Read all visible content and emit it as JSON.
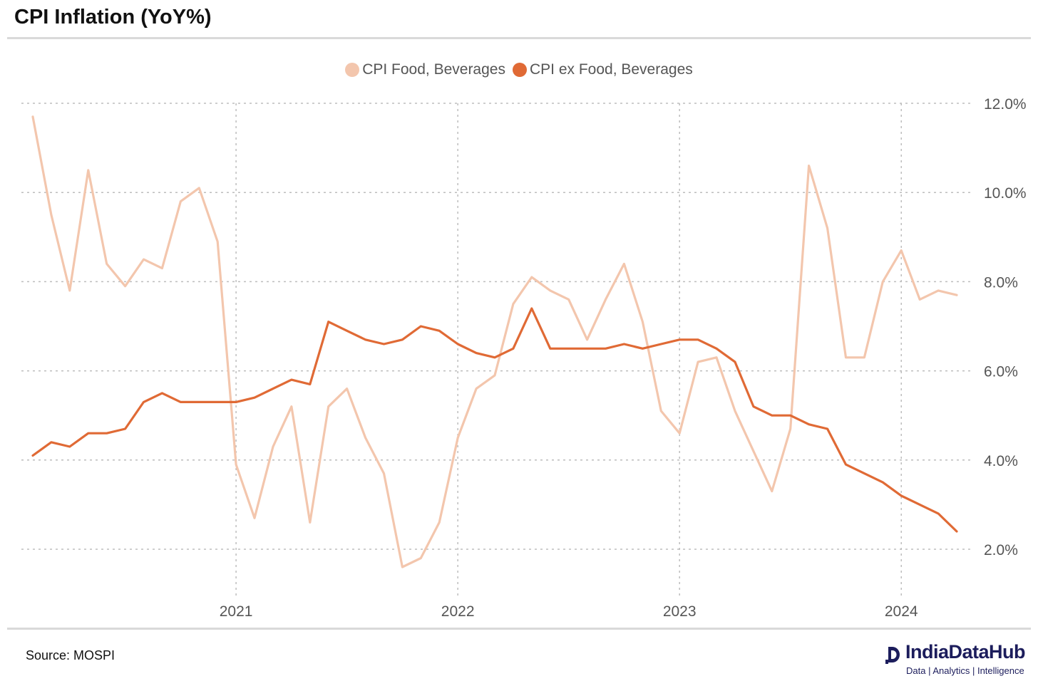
{
  "title": "CPI Inflation (YoY%)",
  "source": "Source: MOSPI",
  "brand": {
    "name": "IndiaDataHub",
    "tagline": "Data | Analytics | Intelligence"
  },
  "colors": {
    "food": "#f3c6ad",
    "ex_food": "#e06a35",
    "grid": "#bdbdbd",
    "axis_text": "#555555"
  },
  "chart_data": {
    "type": "line",
    "title": "CPI Inflation (YoY%)",
    "x_start": "2020-02",
    "x_end": "2024-04",
    "x_ticks": [
      "2021",
      "2022",
      "2023",
      "2024"
    ],
    "y_ticks": [
      "2.0%",
      "4.0%",
      "6.0%",
      "8.0%",
      "10.0%",
      "12.0%"
    ],
    "ylim": [
      2.0,
      12.0
    ],
    "y_axis_side": "right",
    "grid": true,
    "legend_position": "top-center",
    "series": [
      {
        "name": "CPI Food, Beverages",
        "color": "#f3c6ad",
        "x": [
          "2020-02",
          "2020-03",
          "2020-04",
          "2020-05",
          "2020-06",
          "2020-07",
          "2020-08",
          "2020-09",
          "2020-10",
          "2020-11",
          "2020-12",
          "2021-01",
          "2021-02",
          "2021-03",
          "2021-04",
          "2021-05",
          "2021-06",
          "2021-07",
          "2021-08",
          "2021-09",
          "2021-10",
          "2021-11",
          "2021-12",
          "2022-01",
          "2022-02",
          "2022-03",
          "2022-04",
          "2022-05",
          "2022-06",
          "2022-07",
          "2022-08",
          "2022-09",
          "2022-10",
          "2022-11",
          "2022-12",
          "2023-01",
          "2023-02",
          "2023-03",
          "2023-04",
          "2023-05",
          "2023-06",
          "2023-07",
          "2023-08",
          "2023-09",
          "2023-10",
          "2023-11",
          "2023-12",
          "2024-01",
          "2024-02",
          "2024-03",
          "2024-04"
        ],
        "values": [
          11.7,
          9.5,
          7.8,
          10.5,
          8.4,
          7.9,
          8.5,
          8.3,
          9.8,
          10.1,
          8.9,
          3.9,
          2.7,
          4.3,
          5.2,
          2.6,
          5.2,
          5.6,
          4.5,
          3.7,
          1.6,
          1.8,
          2.6,
          4.5,
          5.6,
          5.9,
          7.5,
          8.1,
          7.8,
          7.6,
          6.7,
          7.6,
          8.4,
          7.1,
          5.1,
          4.6,
          6.2,
          6.3,
          5.1,
          4.2,
          3.3,
          4.7,
          10.6,
          9.2,
          6.3,
          6.3,
          8.0,
          8.7,
          7.6,
          7.8,
          7.7
        ]
      },
      {
        "name": "CPI ex Food, Beverages",
        "color": "#e06a35",
        "x": [
          "2020-02",
          "2020-03",
          "2020-04",
          "2020-05",
          "2020-06",
          "2020-07",
          "2020-08",
          "2020-09",
          "2020-10",
          "2020-11",
          "2020-12",
          "2021-01",
          "2021-02",
          "2021-03",
          "2021-04",
          "2021-05",
          "2021-06",
          "2021-07",
          "2021-08",
          "2021-09",
          "2021-10",
          "2021-11",
          "2021-12",
          "2022-01",
          "2022-02",
          "2022-03",
          "2022-04",
          "2022-05",
          "2022-06",
          "2022-07",
          "2022-08",
          "2022-09",
          "2022-10",
          "2022-11",
          "2022-12",
          "2023-01",
          "2023-02",
          "2023-03",
          "2023-04",
          "2023-05",
          "2023-06",
          "2023-07",
          "2023-08",
          "2023-09",
          "2023-10",
          "2023-11",
          "2023-12",
          "2024-01",
          "2024-02",
          "2024-03",
          "2024-04"
        ],
        "values": [
          4.1,
          4.4,
          4.3,
          4.6,
          4.6,
          4.7,
          5.3,
          5.5,
          5.3,
          5.3,
          5.3,
          5.3,
          5.4,
          5.6,
          5.8,
          5.7,
          7.1,
          6.9,
          6.7,
          6.6,
          6.7,
          7.0,
          6.9,
          6.6,
          6.4,
          6.3,
          6.5,
          7.4,
          6.5,
          6.5,
          6.5,
          6.5,
          6.6,
          6.5,
          6.6,
          6.7,
          6.7,
          6.5,
          6.2,
          5.2,
          5.0,
          5.0,
          4.8,
          4.7,
          3.9,
          3.7,
          3.5,
          3.2,
          3.0,
          2.8,
          2.4
        ]
      }
    ]
  }
}
